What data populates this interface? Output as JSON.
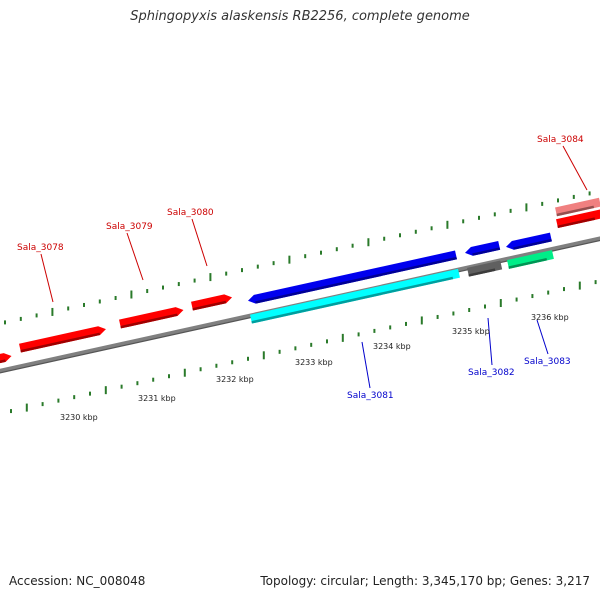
{
  "title": "Sphingopyxis alaskensis RB2256, complete genome",
  "footer": {
    "accession": "Accession: NC_008048",
    "summary": "Topology: circular; Length: 3,345,170 bp; Genes: 3,217"
  },
  "colors": {
    "forward_label": "#cc0000",
    "reverse_label": "#0000cc",
    "tick": "#2a7a2a",
    "backbone": "#808080"
  },
  "kbp_labels": [
    {
      "kb": 3230,
      "text": "3230 kbp"
    },
    {
      "kb": 3231,
      "text": "3231 kbp"
    },
    {
      "kb": 3232,
      "text": "3232 kbp"
    },
    {
      "kb": 3233,
      "text": "3233 kbp"
    },
    {
      "kb": 3234,
      "text": "3234 kbp"
    },
    {
      "kb": 3235,
      "text": "3235 kbp"
    },
    {
      "kb": 3236,
      "text": "3236 kbp"
    }
  ],
  "genes": [
    {
      "label": "",
      "strand": "+",
      "color": "#ff0000"
    },
    {
      "label": "Sala_3078",
      "strand": "+",
      "color": "#ff0000"
    },
    {
      "label": "Sala_3079",
      "strand": "+",
      "color": "#ff0000"
    },
    {
      "label": "Sala_3080",
      "strand": "+",
      "color": "#ff0000"
    },
    {
      "label": "Sala_3084",
      "strand": "+",
      "color": "#ff0000"
    },
    {
      "label": "",
      "strand": "+",
      "color": "#f08080"
    },
    {
      "label": "",
      "strand": "-",
      "color": "#0000ee"
    },
    {
      "label": "",
      "strand": "-",
      "color": "#0000ee"
    },
    {
      "label": "",
      "strand": "-",
      "color": "#0000ee"
    },
    {
      "label": "Sala_3081",
      "strand": "-",
      "color": "#00ffff"
    },
    {
      "label": "Sala_3082",
      "strand": "-",
      "color": "#606060"
    },
    {
      "label": "Sala_3083",
      "strand": "-",
      "color": "#00ee88"
    }
  ]
}
